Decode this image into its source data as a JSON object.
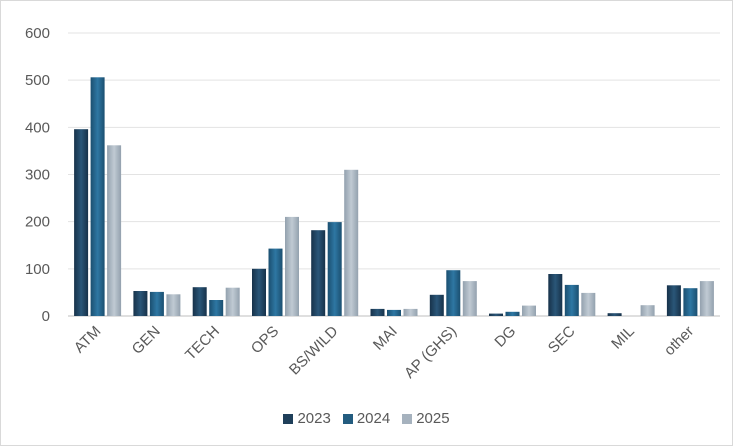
{
  "chart_data": {
    "type": "bar",
    "categories": [
      "ATM",
      "GEN",
      "TECH",
      "OPS",
      "BS/WILD",
      "MAI",
      "AP (GHS)",
      "DG",
      "SEC",
      "MIL",
      "other"
    ],
    "series": [
      {
        "name": "2023",
        "color": "#1f3f5a",
        "values": [
          396,
          53,
          61,
          100,
          182,
          15,
          45,
          5,
          89,
          6,
          65
        ]
      },
      {
        "name": "2024",
        "color": "#235c7f",
        "values": [
          506,
          51,
          34,
          143,
          199,
          13,
          97,
          9,
          66,
          0,
          59
        ]
      },
      {
        "name": "2025",
        "color": "#a6b2be",
        "values": [
          362,
          46,
          60,
          210,
          310,
          15,
          74,
          22,
          49,
          23,
          74
        ]
      }
    ],
    "ylim": [
      0,
      600
    ],
    "yticks": [
      0,
      100,
      200,
      300,
      400,
      500,
      600
    ],
    "grid": true,
    "legend_position": "bottom"
  }
}
